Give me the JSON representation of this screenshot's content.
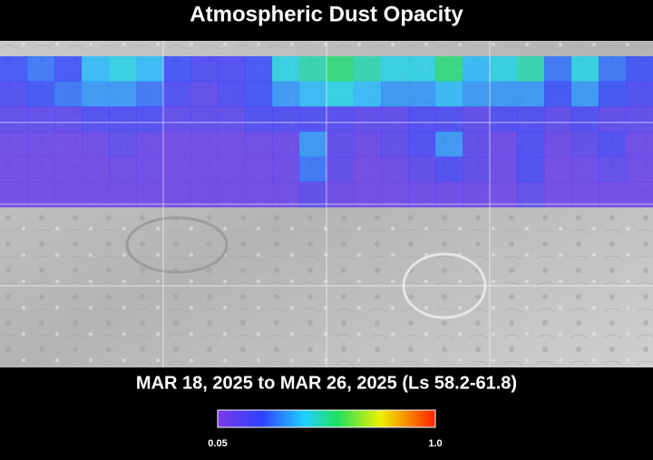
{
  "title": "Atmospheric Dust Opacity",
  "date_range": "MAR 18, 2025 to MAR 26, 2025 (Ls 58.2-61.8)",
  "map": {
    "opacity": [
      [
        0.25,
        0.3,
        0.25,
        0.4,
        0.45,
        0.4,
        0.25,
        0.2,
        0.2,
        0.25,
        0.45,
        0.5,
        0.55,
        0.5,
        0.45,
        0.45,
        0.55,
        0.4,
        0.45,
        0.5,
        0.3,
        0.45,
        0.3,
        0.25
      ],
      [
        0.2,
        0.25,
        0.3,
        0.35,
        0.35,
        0.3,
        0.2,
        0.15,
        0.2,
        0.25,
        0.35,
        0.4,
        0.45,
        0.4,
        0.35,
        0.35,
        0.4,
        0.35,
        0.35,
        0.35,
        0.25,
        0.35,
        0.25,
        0.2
      ],
      [
        0.15,
        0.15,
        0.15,
        0.2,
        0.2,
        0.2,
        0.15,
        0.15,
        0.15,
        0.2,
        0.2,
        0.2,
        0.18,
        0.15,
        0.15,
        0.2,
        0.2,
        0.15,
        0.2,
        0.2,
        0.15,
        0.2,
        0.15,
        0.15
      ],
      [
        0.12,
        0.12,
        0.1,
        0.12,
        0.15,
        0.12,
        0.1,
        0.1,
        0.1,
        0.12,
        0.12,
        0.35,
        0.15,
        0.12,
        0.15,
        0.2,
        0.35,
        0.15,
        0.12,
        0.2,
        0.12,
        0.15,
        0.2,
        0.12
      ],
      [
        0.1,
        0.1,
        0.1,
        0.1,
        0.12,
        0.12,
        0.1,
        0.1,
        0.1,
        0.1,
        0.12,
        0.3,
        0.15,
        0.1,
        0.12,
        0.15,
        0.2,
        0.15,
        0.12,
        0.2,
        0.1,
        0.12,
        0.15,
        0.12
      ],
      [
        0.1,
        0.1,
        0.1,
        0.1,
        0.1,
        0.1,
        0.1,
        0.1,
        0.1,
        0.1,
        0.1,
        0.15,
        0.12,
        0.1,
        0.1,
        0.12,
        0.12,
        0.12,
        0.1,
        0.15,
        0.1,
        0.1,
        0.1,
        0.1
      ]
    ]
  },
  "colorbar": {
    "lim": [
      0.05,
      1
    ],
    "ticks": [
      0.05,
      {
        "value": 1,
        "label": "1.0"
      }
    ]
  }
}
